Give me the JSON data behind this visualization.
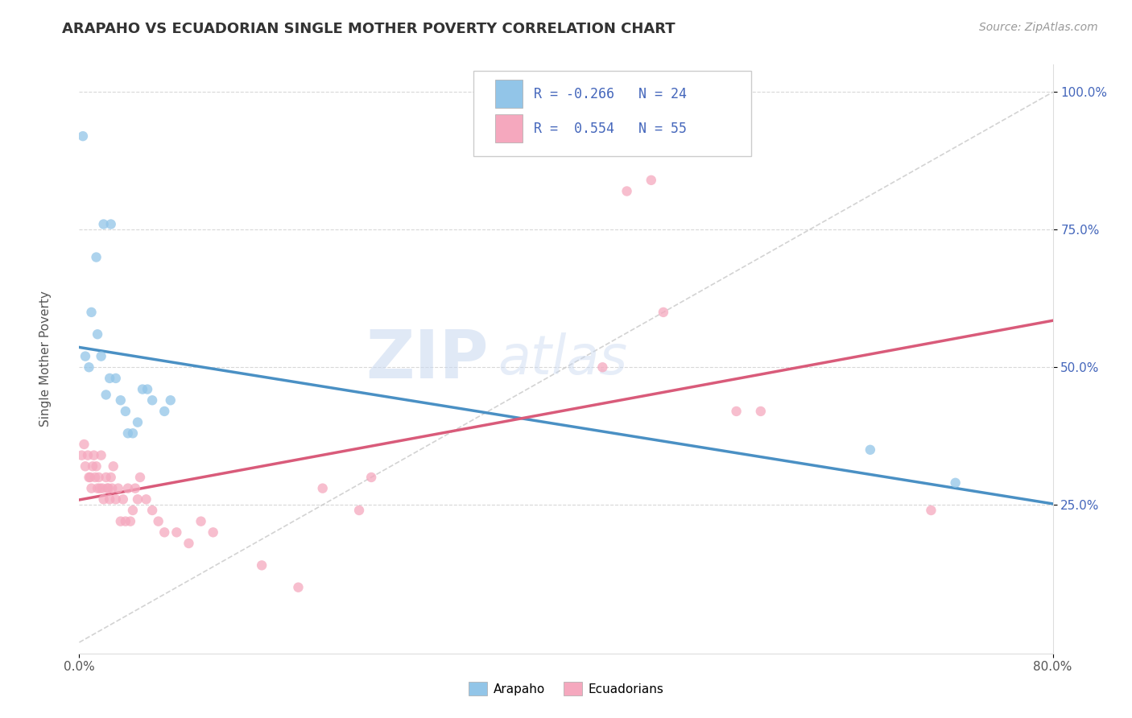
{
  "title": "ARAPAHO VS ECUADORIAN SINGLE MOTHER POVERTY CORRELATION CHART",
  "source": "Source: ZipAtlas.com",
  "ylabel": "Single Mother Poverty",
  "watermark_zip": "ZIP",
  "watermark_atlas": "atlas",
  "arapaho_R": -0.266,
  "arapaho_N": 24,
  "ecuadorian_R": 0.554,
  "ecuadorian_N": 55,
  "arapaho_color": "#92C5E8",
  "ecuadorian_color": "#F5A8BE",
  "arapaho_line_color": "#4A90C4",
  "ecuadorian_line_color": "#D95B7A",
  "diagonal_color": "#C8C8C8",
  "background_color": "#FFFFFF",
  "grid_color": "#D8D8D8",
  "text_color": "#4466BB",
  "title_color": "#333333",
  "source_color": "#999999",
  "xlim": [
    0.0,
    0.8
  ],
  "ylim": [
    -0.02,
    1.05
  ],
  "yticks": [
    0.25,
    0.5,
    0.75,
    1.0
  ],
  "ytick_labels": [
    "25.0%",
    "50.0%",
    "75.0%",
    "100.0%"
  ],
  "arapaho_points": [
    [
      0.003,
      0.92
    ],
    [
      0.014,
      0.7
    ],
    [
      0.02,
      0.76
    ],
    [
      0.026,
      0.76
    ],
    [
      0.005,
      0.52
    ],
    [
      0.008,
      0.5
    ],
    [
      0.01,
      0.6
    ],
    [
      0.015,
      0.56
    ],
    [
      0.018,
      0.52
    ],
    [
      0.022,
      0.45
    ],
    [
      0.025,
      0.48
    ],
    [
      0.03,
      0.48
    ],
    [
      0.034,
      0.44
    ],
    [
      0.038,
      0.42
    ],
    [
      0.04,
      0.38
    ],
    [
      0.044,
      0.38
    ],
    [
      0.048,
      0.4
    ],
    [
      0.052,
      0.46
    ],
    [
      0.056,
      0.46
    ],
    [
      0.06,
      0.44
    ],
    [
      0.07,
      0.42
    ],
    [
      0.075,
      0.44
    ],
    [
      0.65,
      0.35
    ],
    [
      0.72,
      0.29
    ]
  ],
  "ecuadorian_points": [
    [
      0.002,
      0.34
    ],
    [
      0.004,
      0.36
    ],
    [
      0.005,
      0.32
    ],
    [
      0.007,
      0.34
    ],
    [
      0.008,
      0.3
    ],
    [
      0.009,
      0.3
    ],
    [
      0.01,
      0.28
    ],
    [
      0.011,
      0.32
    ],
    [
      0.012,
      0.34
    ],
    [
      0.013,
      0.3
    ],
    [
      0.014,
      0.32
    ],
    [
      0.015,
      0.28
    ],
    [
      0.016,
      0.3
    ],
    [
      0.017,
      0.28
    ],
    [
      0.018,
      0.34
    ],
    [
      0.019,
      0.28
    ],
    [
      0.02,
      0.26
    ],
    [
      0.022,
      0.3
    ],
    [
      0.023,
      0.28
    ],
    [
      0.024,
      0.28
    ],
    [
      0.025,
      0.26
    ],
    [
      0.026,
      0.3
    ],
    [
      0.027,
      0.28
    ],
    [
      0.028,
      0.32
    ],
    [
      0.03,
      0.26
    ],
    [
      0.032,
      0.28
    ],
    [
      0.034,
      0.22
    ],
    [
      0.036,
      0.26
    ],
    [
      0.038,
      0.22
    ],
    [
      0.04,
      0.28
    ],
    [
      0.042,
      0.22
    ],
    [
      0.044,
      0.24
    ],
    [
      0.046,
      0.28
    ],
    [
      0.048,
      0.26
    ],
    [
      0.05,
      0.3
    ],
    [
      0.055,
      0.26
    ],
    [
      0.06,
      0.24
    ],
    [
      0.065,
      0.22
    ],
    [
      0.07,
      0.2
    ],
    [
      0.08,
      0.2
    ],
    [
      0.09,
      0.18
    ],
    [
      0.1,
      0.22
    ],
    [
      0.11,
      0.2
    ],
    [
      0.15,
      0.14
    ],
    [
      0.18,
      0.1
    ],
    [
      0.2,
      0.28
    ],
    [
      0.23,
      0.24
    ],
    [
      0.24,
      0.3
    ],
    [
      0.43,
      0.5
    ],
    [
      0.45,
      0.82
    ],
    [
      0.47,
      0.84
    ],
    [
      0.48,
      0.6
    ],
    [
      0.54,
      0.42
    ],
    [
      0.56,
      0.42
    ],
    [
      0.7,
      0.24
    ]
  ]
}
